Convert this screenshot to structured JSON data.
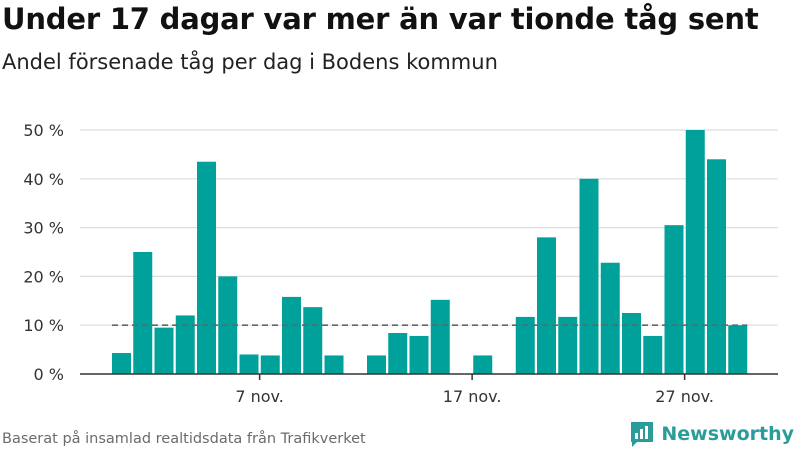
{
  "header": {
    "title": "Under 17 dagar var mer än var tionde tåg sent",
    "subtitle": "Andel försenade tåg per dag i Bodens kommun"
  },
  "footer": {
    "source": "Baserat på insamlad realtidsdata från Trafikverket",
    "brand": "Newsworthy"
  },
  "colors": {
    "bar": "#00a19a",
    "grid": "#dddddd",
    "reference_line": "#666666",
    "axis": "#333333",
    "brand": "#2a9d9a"
  },
  "chart_data": {
    "type": "bar",
    "title": "Under 17 dagar var mer än var tionde tåg sent",
    "subtitle": "Andel försenade tåg per dag i Bodens kommun",
    "x_unit": "day of November",
    "x": [
      1,
      2,
      3,
      4,
      5,
      6,
      7,
      8,
      9,
      10,
      11,
      12,
      13,
      14,
      15,
      16,
      17,
      18,
      19,
      20,
      21,
      22,
      23,
      24,
      25,
      26,
      27,
      28,
      29,
      30
    ],
    "values": [
      4.3,
      25,
      9.5,
      12,
      43.5,
      20,
      4,
      3.8,
      15.8,
      13.7,
      3.8,
      null,
      3.8,
      8.4,
      7.8,
      15.2,
      null,
      3.8,
      null,
      11.7,
      28,
      11.7,
      40,
      22.8,
      12.5,
      7.8,
      30.5,
      50,
      44,
      10
    ],
    "x_ticks": [
      {
        "day": 7,
        "label": "7 nov."
      },
      {
        "day": 17,
        "label": "17 nov."
      },
      {
        "day": 27,
        "label": "27 nov."
      }
    ],
    "y_ticks": [
      {
        "value": 0,
        "label": "0 %"
      },
      {
        "value": 10,
        "label": "10 %"
      },
      {
        "value": 20,
        "label": "20 %"
      },
      {
        "value": 30,
        "label": "30 %"
      },
      {
        "value": 40,
        "label": "40 %"
      },
      {
        "value": 50,
        "label": "50 %"
      }
    ],
    "ylim": [
      0,
      50
    ],
    "reference_line": {
      "value": 10,
      "style": "dashed"
    },
    "grid": true,
    "legend": "none",
    "xlabel": "",
    "ylabel": ""
  }
}
